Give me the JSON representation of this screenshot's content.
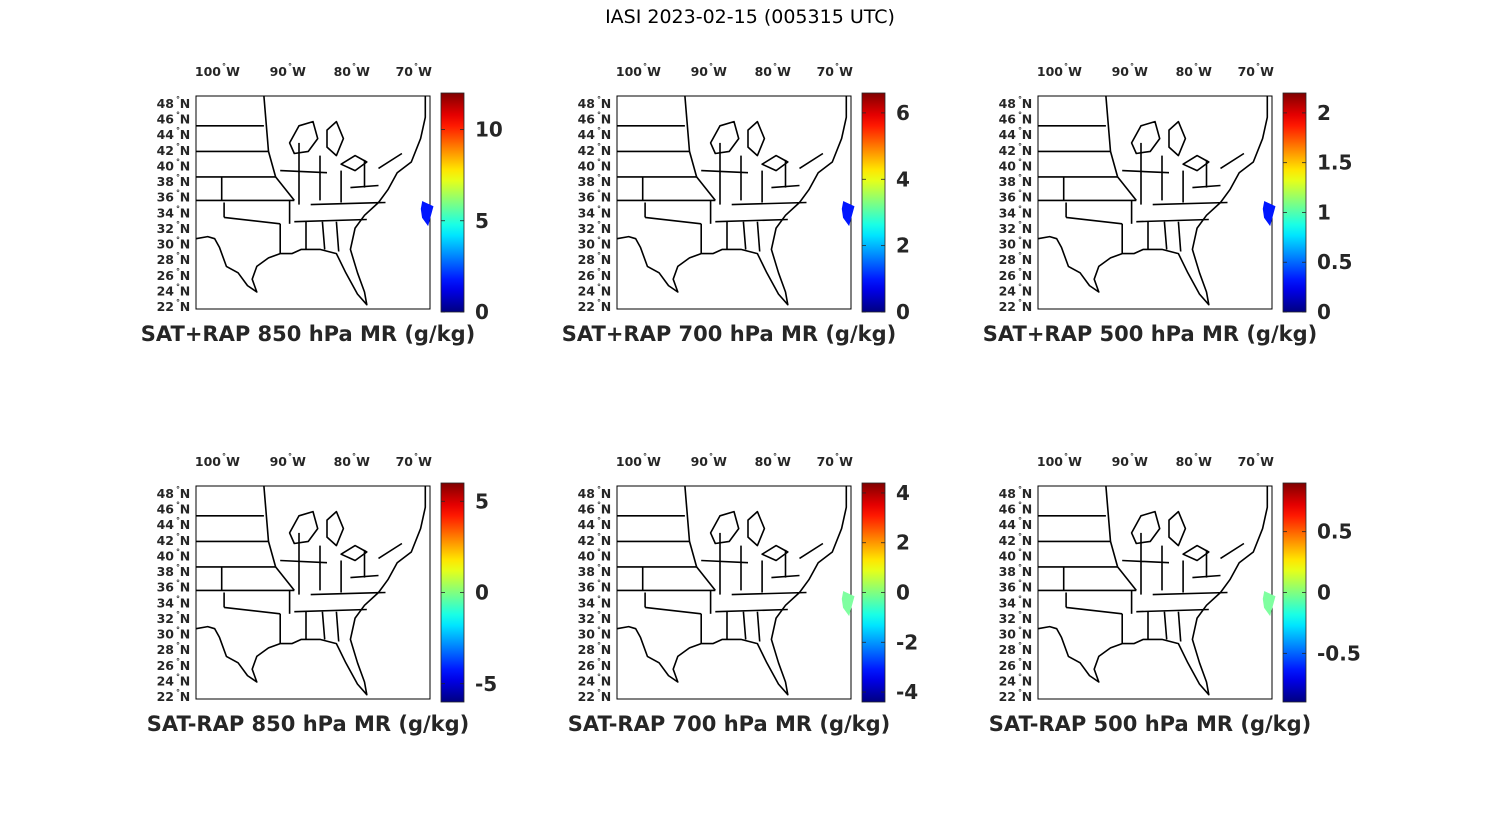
{
  "figure_title": "IASI 2023-02-15 (005315 UTC)",
  "map_ticks": {
    "lon_labels": [
      "100",
      "W",
      "90",
      "W",
      "80",
      "W",
      "70",
      "W"
    ],
    "lon_ticks": [
      {
        "deg": "100",
        "hemi": "W"
      },
      {
        "deg": "90",
        "hemi": "W"
      },
      {
        "deg": "80",
        "hemi": "W"
      },
      {
        "deg": "70",
        "hemi": "W"
      }
    ],
    "lat_ticks": [
      {
        "deg": "48",
        "hemi": "N"
      },
      {
        "deg": "46",
        "hemi": "N"
      },
      {
        "deg": "44",
        "hemi": "N"
      },
      {
        "deg": "42",
        "hemi": "N"
      },
      {
        "deg": "40",
        "hemi": "N"
      },
      {
        "deg": "38",
        "hemi": "N"
      },
      {
        "deg": "36",
        "hemi": "N"
      },
      {
        "deg": "34",
        "hemi": "N"
      },
      {
        "deg": "32",
        "hemi": "N"
      },
      {
        "deg": "30",
        "hemi": "N"
      },
      {
        "deg": "28",
        "hemi": "N"
      },
      {
        "deg": "26",
        "hemi": "N"
      },
      {
        "deg": "24",
        "hemi": "N"
      },
      {
        "deg": "22",
        "hemi": "N"
      }
    ]
  },
  "colormap": "jet",
  "panels": [
    {
      "title": "SAT+RAP 850 hPa MR (g/kg)",
      "colorbar_min": 0,
      "colorbar_max": 12,
      "colorbar_ticks": [
        "0",
        "5",
        "10"
      ],
      "colorbar_tick_values": [
        0,
        5,
        10
      ],
      "swath_value": 0.6,
      "swath_color": "#0016ff"
    },
    {
      "title": "SAT+RAP 700 hPa MR (g/kg)",
      "colorbar_min": 0,
      "colorbar_max": 6.6,
      "colorbar_ticks": [
        "0",
        "2",
        "4",
        "6"
      ],
      "colorbar_tick_values": [
        0,
        2,
        4,
        6
      ],
      "swath_value": 0.3,
      "swath_color": "#0016ff"
    },
    {
      "title": "SAT+RAP 500 hPa MR (g/kg)",
      "colorbar_min": 0,
      "colorbar_max": 2.2,
      "colorbar_ticks": [
        "0",
        "0.5",
        "1",
        "1.5",
        "2"
      ],
      "colorbar_tick_values": [
        0,
        0.5,
        1,
        1.5,
        2
      ],
      "swath_value": 0.1,
      "swath_color": "#0016ff"
    },
    {
      "title": "SAT-RAP 850 hPa MR (g/kg)",
      "colorbar_min": -6,
      "colorbar_max": 6,
      "colorbar_ticks": [
        "-5",
        "0",
        "5"
      ],
      "colorbar_tick_values": [
        -5,
        0,
        5
      ],
      "swath_value": null,
      "swath_color": null
    },
    {
      "title": "SAT-RAP 700 hPa MR (g/kg)",
      "colorbar_min": -4.4,
      "colorbar_max": 4.4,
      "colorbar_ticks": [
        "-4",
        "-2",
        "0",
        "2",
        "4"
      ],
      "colorbar_tick_values": [
        -4,
        -2,
        0,
        2,
        4
      ],
      "swath_value": 0.0,
      "swath_color": "#7fffa0"
    },
    {
      "title": "SAT-RAP 500 hPa MR (g/kg)",
      "colorbar_min": -0.9,
      "colorbar_max": 0.9,
      "colorbar_ticks": [
        "-0.5",
        "0",
        "0.5"
      ],
      "colorbar_tick_values": [
        -0.5,
        0,
        0.5
      ],
      "swath_value": 0.0,
      "swath_color": "#7fffa0"
    }
  ]
}
